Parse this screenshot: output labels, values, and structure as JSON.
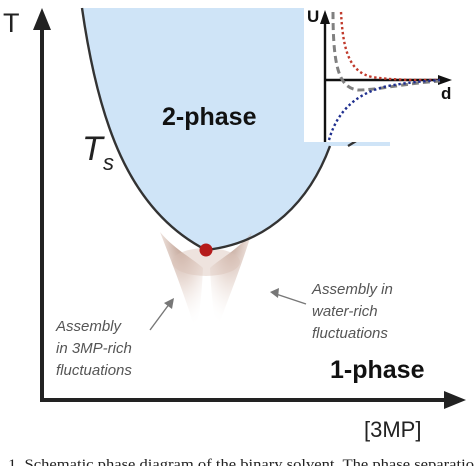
{
  "diagram": {
    "axis_y_label": "T",
    "axis_x_label": "[3MP]",
    "curve_label_main": "T",
    "curve_label_sub": "s",
    "region_two_phase": "2-phase",
    "region_one_phase": "1-phase",
    "annotation_left": [
      "Assembly",
      "in 3MP-rich",
      "fluctuations"
    ],
    "annotation_right": [
      "Assembly in",
      "water-rich",
      "fluctuations"
    ],
    "inset": {
      "axis_y_label": "U",
      "axis_x_label": "d",
      "series_colors": [
        "#c0392b",
        "#808080",
        "#1f2f8f"
      ]
    },
    "colors": {
      "two_phase_fill": "#cfe4f7",
      "critical_point": "#b51b1b",
      "fluctuation_shade": "#b58a78"
    }
  },
  "caption": {
    "text": "1. Schematic phase diagram of the binary solvent. The phase separatio"
  }
}
